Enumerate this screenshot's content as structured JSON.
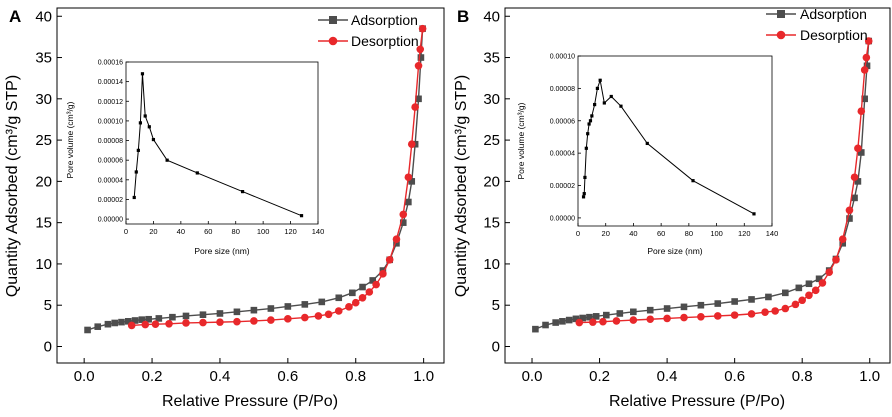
{
  "figure": {
    "panel_labels": [
      "A",
      "B"
    ]
  },
  "chart_data": [
    {
      "panel": "A",
      "type": "line",
      "xlabel": "Relative Pressure (P/Po)",
      "ylabel": "Quantity Adsorbed (cm³/g STP)",
      "xlim": [
        -0.08,
        1.06
      ],
      "ylim": [
        -2,
        41
      ],
      "xticks": [
        "0.0",
        "0.2",
        "0.4",
        "0.6",
        "0.8",
        "1.0"
      ],
      "yticks": [
        "0",
        "5",
        "10",
        "15",
        "20",
        "25",
        "30",
        "35",
        "40"
      ],
      "legend": "top-right",
      "series": [
        {
          "name": "Adsorption",
          "color": "#4d4d4d",
          "marker": "square",
          "x": [
            0.01,
            0.04,
            0.07,
            0.09,
            0.11,
            0.13,
            0.15,
            0.17,
            0.19,
            0.22,
            0.26,
            0.3,
            0.35,
            0.4,
            0.45,
            0.5,
            0.55,
            0.6,
            0.65,
            0.7,
            0.75,
            0.79,
            0.82,
            0.85,
            0.88,
            0.9,
            0.92,
            0.94,
            0.955,
            0.965,
            0.975,
            0.985,
            0.992,
            0.997
          ],
          "y": [
            2.0,
            2.4,
            2.7,
            2.85,
            2.95,
            3.05,
            3.15,
            3.25,
            3.3,
            3.4,
            3.55,
            3.7,
            3.85,
            4.0,
            4.2,
            4.4,
            4.6,
            4.85,
            5.1,
            5.4,
            5.9,
            6.5,
            7.2,
            8.0,
            9.2,
            10.5,
            12.5,
            15.0,
            17.5,
            20.0,
            24.5,
            30.0,
            35.0,
            38.5
          ]
        },
        {
          "name": "Desorption",
          "color": "#e8282b",
          "marker": "circle",
          "x": [
            0.997,
            0.99,
            0.985,
            0.975,
            0.965,
            0.955,
            0.94,
            0.92,
            0.9,
            0.88,
            0.86,
            0.84,
            0.82,
            0.8,
            0.78,
            0.75,
            0.72,
            0.69,
            0.65,
            0.6,
            0.55,
            0.5,
            0.45,
            0.4,
            0.35,
            0.3,
            0.25,
            0.21,
            0.18,
            0.14
          ],
          "y": [
            38.5,
            36.0,
            34.0,
            29.0,
            24.5,
            20.5,
            16.0,
            13.0,
            10.5,
            8.8,
            7.5,
            6.6,
            5.9,
            5.3,
            4.8,
            4.3,
            3.9,
            3.7,
            3.5,
            3.35,
            3.2,
            3.1,
            3.0,
            2.95,
            2.9,
            2.85,
            2.75,
            2.7,
            2.65,
            2.55
          ]
        }
      ],
      "inset": {
        "type": "line",
        "xlabel": "Pore size (nm)",
        "ylabel": "Pore volume (cm³/g)",
        "xlim": [
          0,
          140
        ],
        "ylim": [
          -5e-06,
          0.00016
        ],
        "xticks": [
          "0",
          "20",
          "40",
          "60",
          "80",
          "100",
          "120",
          "140"
        ],
        "yticks": [
          "0.00000",
          "0.00002",
          "0.00004",
          "0.00006",
          "0.00008",
          "0.00010",
          "0.00012",
          "0.00014",
          "0.00016"
        ],
        "color": "#000000",
        "x": [
          6,
          7.5,
          9,
          10.5,
          12,
          14,
          17,
          20,
          30,
          52,
          85,
          128
        ],
        "y": [
          2.2e-05,
          4.8e-05,
          7e-05,
          9.8e-05,
          0.000148,
          0.000105,
          9.4e-05,
          8.1e-05,
          6e-05,
          4.7e-05,
          2.8e-05,
          3.5e-06
        ]
      }
    },
    {
      "panel": "B",
      "type": "line",
      "xlabel": "Relative Pressure (P/Po)",
      "ylabel": "Quantity Adsorbed (cm³/g STP)",
      "xlim": [
        -0.08,
        1.06
      ],
      "ylim": [
        -2,
        41
      ],
      "xticks": [
        "0.0",
        "0.2",
        "0.4",
        "0.6",
        "0.8",
        "1.0"
      ],
      "yticks": [
        "0",
        "5",
        "10",
        "15",
        "20",
        "25",
        "30",
        "35",
        "40"
      ],
      "legend": "top-right",
      "series": [
        {
          "name": "Adsorption",
          "color": "#4d4d4d",
          "marker": "square",
          "x": [
            0.01,
            0.04,
            0.07,
            0.09,
            0.11,
            0.13,
            0.15,
            0.17,
            0.19,
            0.22,
            0.26,
            0.3,
            0.35,
            0.4,
            0.45,
            0.5,
            0.55,
            0.6,
            0.65,
            0.7,
            0.75,
            0.79,
            0.82,
            0.85,
            0.88,
            0.9,
            0.92,
            0.94,
            0.955,
            0.965,
            0.975,
            0.985,
            0.992,
            0.997
          ],
          "y": [
            2.1,
            2.6,
            2.9,
            3.05,
            3.2,
            3.35,
            3.45,
            3.55,
            3.65,
            3.8,
            4.0,
            4.2,
            4.4,
            4.6,
            4.8,
            5.0,
            5.2,
            5.45,
            5.7,
            6.0,
            6.5,
            7.1,
            7.6,
            8.2,
            9.2,
            10.6,
            12.5,
            15.5,
            18.0,
            20.0,
            23.5,
            30.0,
            34.0,
            37.0
          ]
        },
        {
          "name": "Desorption",
          "color": "#e8282b",
          "marker": "circle",
          "x": [
            0.997,
            0.99,
            0.985,
            0.975,
            0.965,
            0.955,
            0.94,
            0.92,
            0.9,
            0.88,
            0.86,
            0.84,
            0.82,
            0.8,
            0.78,
            0.75,
            0.72,
            0.69,
            0.65,
            0.6,
            0.55,
            0.5,
            0.45,
            0.4,
            0.35,
            0.3,
            0.25,
            0.21,
            0.18,
            0.14
          ],
          "y": [
            37.0,
            35.0,
            33.5,
            28.5,
            24.0,
            20.5,
            16.5,
            13.0,
            10.5,
            9.0,
            7.7,
            6.8,
            6.2,
            5.6,
            5.1,
            4.6,
            4.3,
            4.15,
            3.95,
            3.8,
            3.7,
            3.6,
            3.5,
            3.4,
            3.3,
            3.2,
            3.1,
            3.0,
            2.95,
            2.9
          ]
        }
      ],
      "inset": {
        "type": "line",
        "xlabel": "Pore size (nm)",
        "ylabel": "Pore volume (cm³/g)",
        "xlim": [
          0,
          140
        ],
        "ylim": [
          -5e-06,
          0.0001
        ],
        "xticks": [
          "0",
          "20",
          "40",
          "60",
          "80",
          "100",
          "120",
          "140"
        ],
        "yticks": [
          "0.00000",
          "0.00002",
          "0.00004",
          "0.00006",
          "0.00008",
          "0.00010"
        ],
        "color": "#000000",
        "x": [
          4,
          4.5,
          5,
          6,
          7,
          8,
          9,
          10,
          12,
          14,
          16,
          19,
          24,
          31,
          50,
          83,
          127
        ],
        "y": [
          1.3e-05,
          1.5e-05,
          2.5e-05,
          4.3e-05,
          5.2e-05,
          5.8e-05,
          6e-05,
          6.3e-05,
          7e-05,
          8e-05,
          8.5e-05,
          7.1e-05,
          7.5e-05,
          6.9e-05,
          4.6e-05,
          2.3e-05,
          2.5e-06
        ]
      }
    }
  ]
}
